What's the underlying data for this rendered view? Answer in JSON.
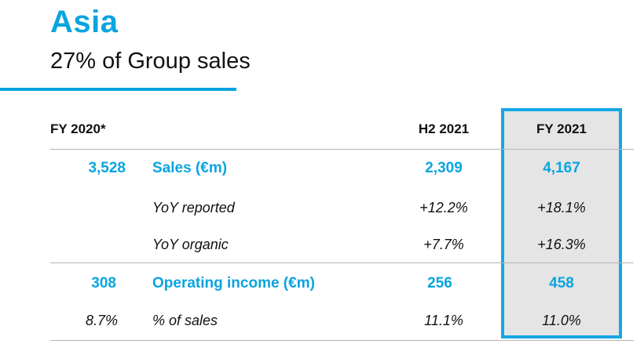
{
  "title": "Asia",
  "subtitle": "27% of Group sales",
  "colors": {
    "accent": "#0aa4e0",
    "highlight_border": "#15a7e4",
    "highlight_fill": "#e5e5e5"
  },
  "table": {
    "headers": {
      "fy2020": "FY 2020*",
      "h2_2021": "H2 2021",
      "fy2021": "FY 2021"
    },
    "rows": [
      {
        "fy2020": "3,528",
        "label": "Sales (€m)",
        "h2_2021": "2,309",
        "fy2021": "4,167"
      },
      {
        "fy2020": "",
        "label": "YoY reported",
        "h2_2021": "+12.2%",
        "fy2021": "+18.1%"
      },
      {
        "fy2020": "",
        "label": "YoY organic",
        "h2_2021": "+7.7%",
        "fy2021": "+16.3%"
      },
      {
        "fy2020": "308",
        "label": "Operating income (€m)",
        "h2_2021": "256",
        "fy2021": "458"
      },
      {
        "fy2020": "8.7%",
        "label": "% of sales",
        "h2_2021": "11.1%",
        "fy2021": "11.0%"
      }
    ]
  }
}
